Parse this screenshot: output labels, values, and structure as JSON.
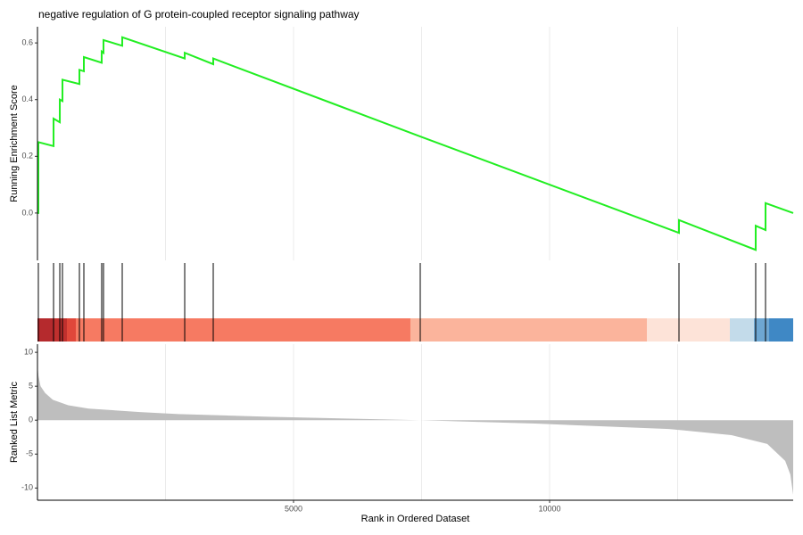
{
  "chart_data": [
    {
      "type": "line",
      "title": "negative regulation of G protein-coupled receptor signaling pathway",
      "ylabel": "Running Enrichment Score",
      "color": "#22ee22",
      "x": [
        0,
        17,
        17,
        314,
        314,
        436,
        436,
        488,
        488,
        819,
        819,
        906,
        906,
        1254,
        1254,
        1289,
        1289,
        1655,
        1655,
        2875,
        2875,
        3432,
        3432,
        7474,
        12526,
        12526,
        14024,
        14024,
        14216,
        14216,
        14756
      ],
      "values": [
        0,
        0,
        0.25,
        0.236,
        0.333,
        0.32,
        0.4,
        0.395,
        0.47,
        0.455,
        0.505,
        0.5,
        0.55,
        0.53,
        0.57,
        0.565,
        0.61,
        0.59,
        0.62,
        0.545,
        0.565,
        0.525,
        0.545,
        0.27,
        -0.07,
        -0.025,
        -0.13,
        -0.045,
        -0.06,
        0.035,
        0
      ],
      "xlim": [
        0,
        14756
      ],
      "ylim": [
        -0.167,
        0.657
      ],
      "yticks": [
        {
          "value": 0,
          "label": "0.0"
        },
        0.2,
        0.4,
        0.6
      ],
      "grid": true,
      "x_grid": [
        2500,
        5000,
        7500,
        10000,
        12500
      ]
    },
    {
      "type": "barcode",
      "hits": [
        17,
        314,
        436,
        488,
        819,
        906,
        1254,
        1289,
        1655,
        2875,
        3432,
        7474,
        12526,
        14024,
        14216
      ],
      "breaks": [
        0,
        314,
        575,
        749,
        7282,
        11899,
        13519,
        13990,
        14286,
        14756
      ],
      "colors": [
        "#b52a2d",
        "#c0302e",
        "#e0473a",
        "#f67a62",
        "#fbb49c",
        "#fde3d8",
        "#c3dbea",
        "#6ea7d2",
        "#3f88c5"
      ],
      "xlim": [
        0,
        14756
      ]
    },
    {
      "type": "area",
      "ylabel": "Ranked List Metric",
      "xlabel": "Rank in Ordered Dataset",
      "color": "#bebebe",
      "x": [
        0,
        20,
        60,
        150,
        300,
        600,
        1000,
        2000,
        2750,
        4500,
        7470,
        9720,
        12330,
        13550,
        14250,
        14600,
        14700,
        14756
      ],
      "values": [
        8,
        6.5,
        5,
        4,
        3,
        2.2,
        1.7,
        1.2,
        0.9,
        0.5,
        0,
        -0.5,
        -1.3,
        -2.2,
        -3.5,
        -6,
        -8,
        -11
      ],
      "xlim": [
        0,
        14756
      ],
      "ylim": [
        -11.8,
        11.2
      ],
      "yticks": [
        10,
        5,
        0,
        -5,
        -10
      ],
      "xticks": [
        5000,
        10000
      ],
      "grid": true,
      "x_grid": [
        2500,
        5000,
        7500,
        10000,
        12500
      ]
    }
  ]
}
